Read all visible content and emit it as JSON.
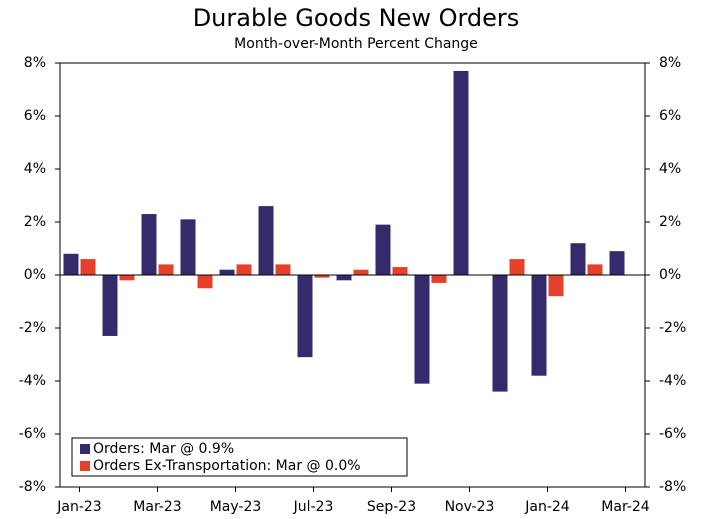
{
  "chart_data": {
    "type": "bar",
    "title": "Durable Goods New Orders",
    "subtitle": "Month-over-Month Percent Change",
    "categories": [
      "Jan-23",
      null,
      "Mar-23",
      null,
      "May-23",
      null,
      "Jul-23",
      null,
      "Sep-23",
      null,
      "Nov-23",
      null,
      "Jan-24",
      null,
      "Mar-24"
    ],
    "series": [
      {
        "name": "Orders: Mar @ 0.9%",
        "color": "#352a6b",
        "values": [
          0.8,
          -2.3,
          2.3,
          2.1,
          0.2,
          2.6,
          -3.1,
          -0.2,
          1.9,
          -4.1,
          7.7,
          -4.4,
          -3.8,
          1.2,
          0.9
        ]
      },
      {
        "name": "Orders Ex-Transportation: Mar @ 0.0%",
        "color": "#e5402a",
        "values": [
          0.6,
          -0.2,
          0.4,
          -0.5,
          0.4,
          0.4,
          -0.1,
          0.2,
          0.3,
          -0.3,
          0.0,
          0.6,
          -0.8,
          0.4,
          0.0
        ]
      }
    ],
    "ylim": [
      -8,
      8
    ],
    "yticks": [
      {
        "value": -8,
        "label": "-8%"
      },
      {
        "value": -6,
        "label": "-6%"
      },
      {
        "value": -4,
        "label": "-4%"
      },
      {
        "value": -2,
        "label": "-2%"
      },
      {
        "value": 0,
        "label": "0%"
      },
      {
        "value": 2,
        "label": "2%"
      },
      {
        "value": 4,
        "label": "4%"
      },
      {
        "value": 6,
        "label": "6%"
      },
      {
        "value": 8,
        "label": "8%"
      }
    ],
    "y2lim": [
      -8,
      8
    ],
    "y2ticks": [
      {
        "value": -8,
        "label": "-8%"
      },
      {
        "value": -6,
        "label": "-6%"
      },
      {
        "value": -4,
        "label": "-4%"
      },
      {
        "value": -2,
        "label": "-2%"
      },
      {
        "value": 0,
        "label": "0%"
      },
      {
        "value": 2,
        "label": "2%"
      },
      {
        "value": 4,
        "label": "4%"
      },
      {
        "value": 6,
        "label": "6%"
      },
      {
        "value": 8,
        "label": "8%"
      }
    ],
    "legend": "lower left"
  }
}
